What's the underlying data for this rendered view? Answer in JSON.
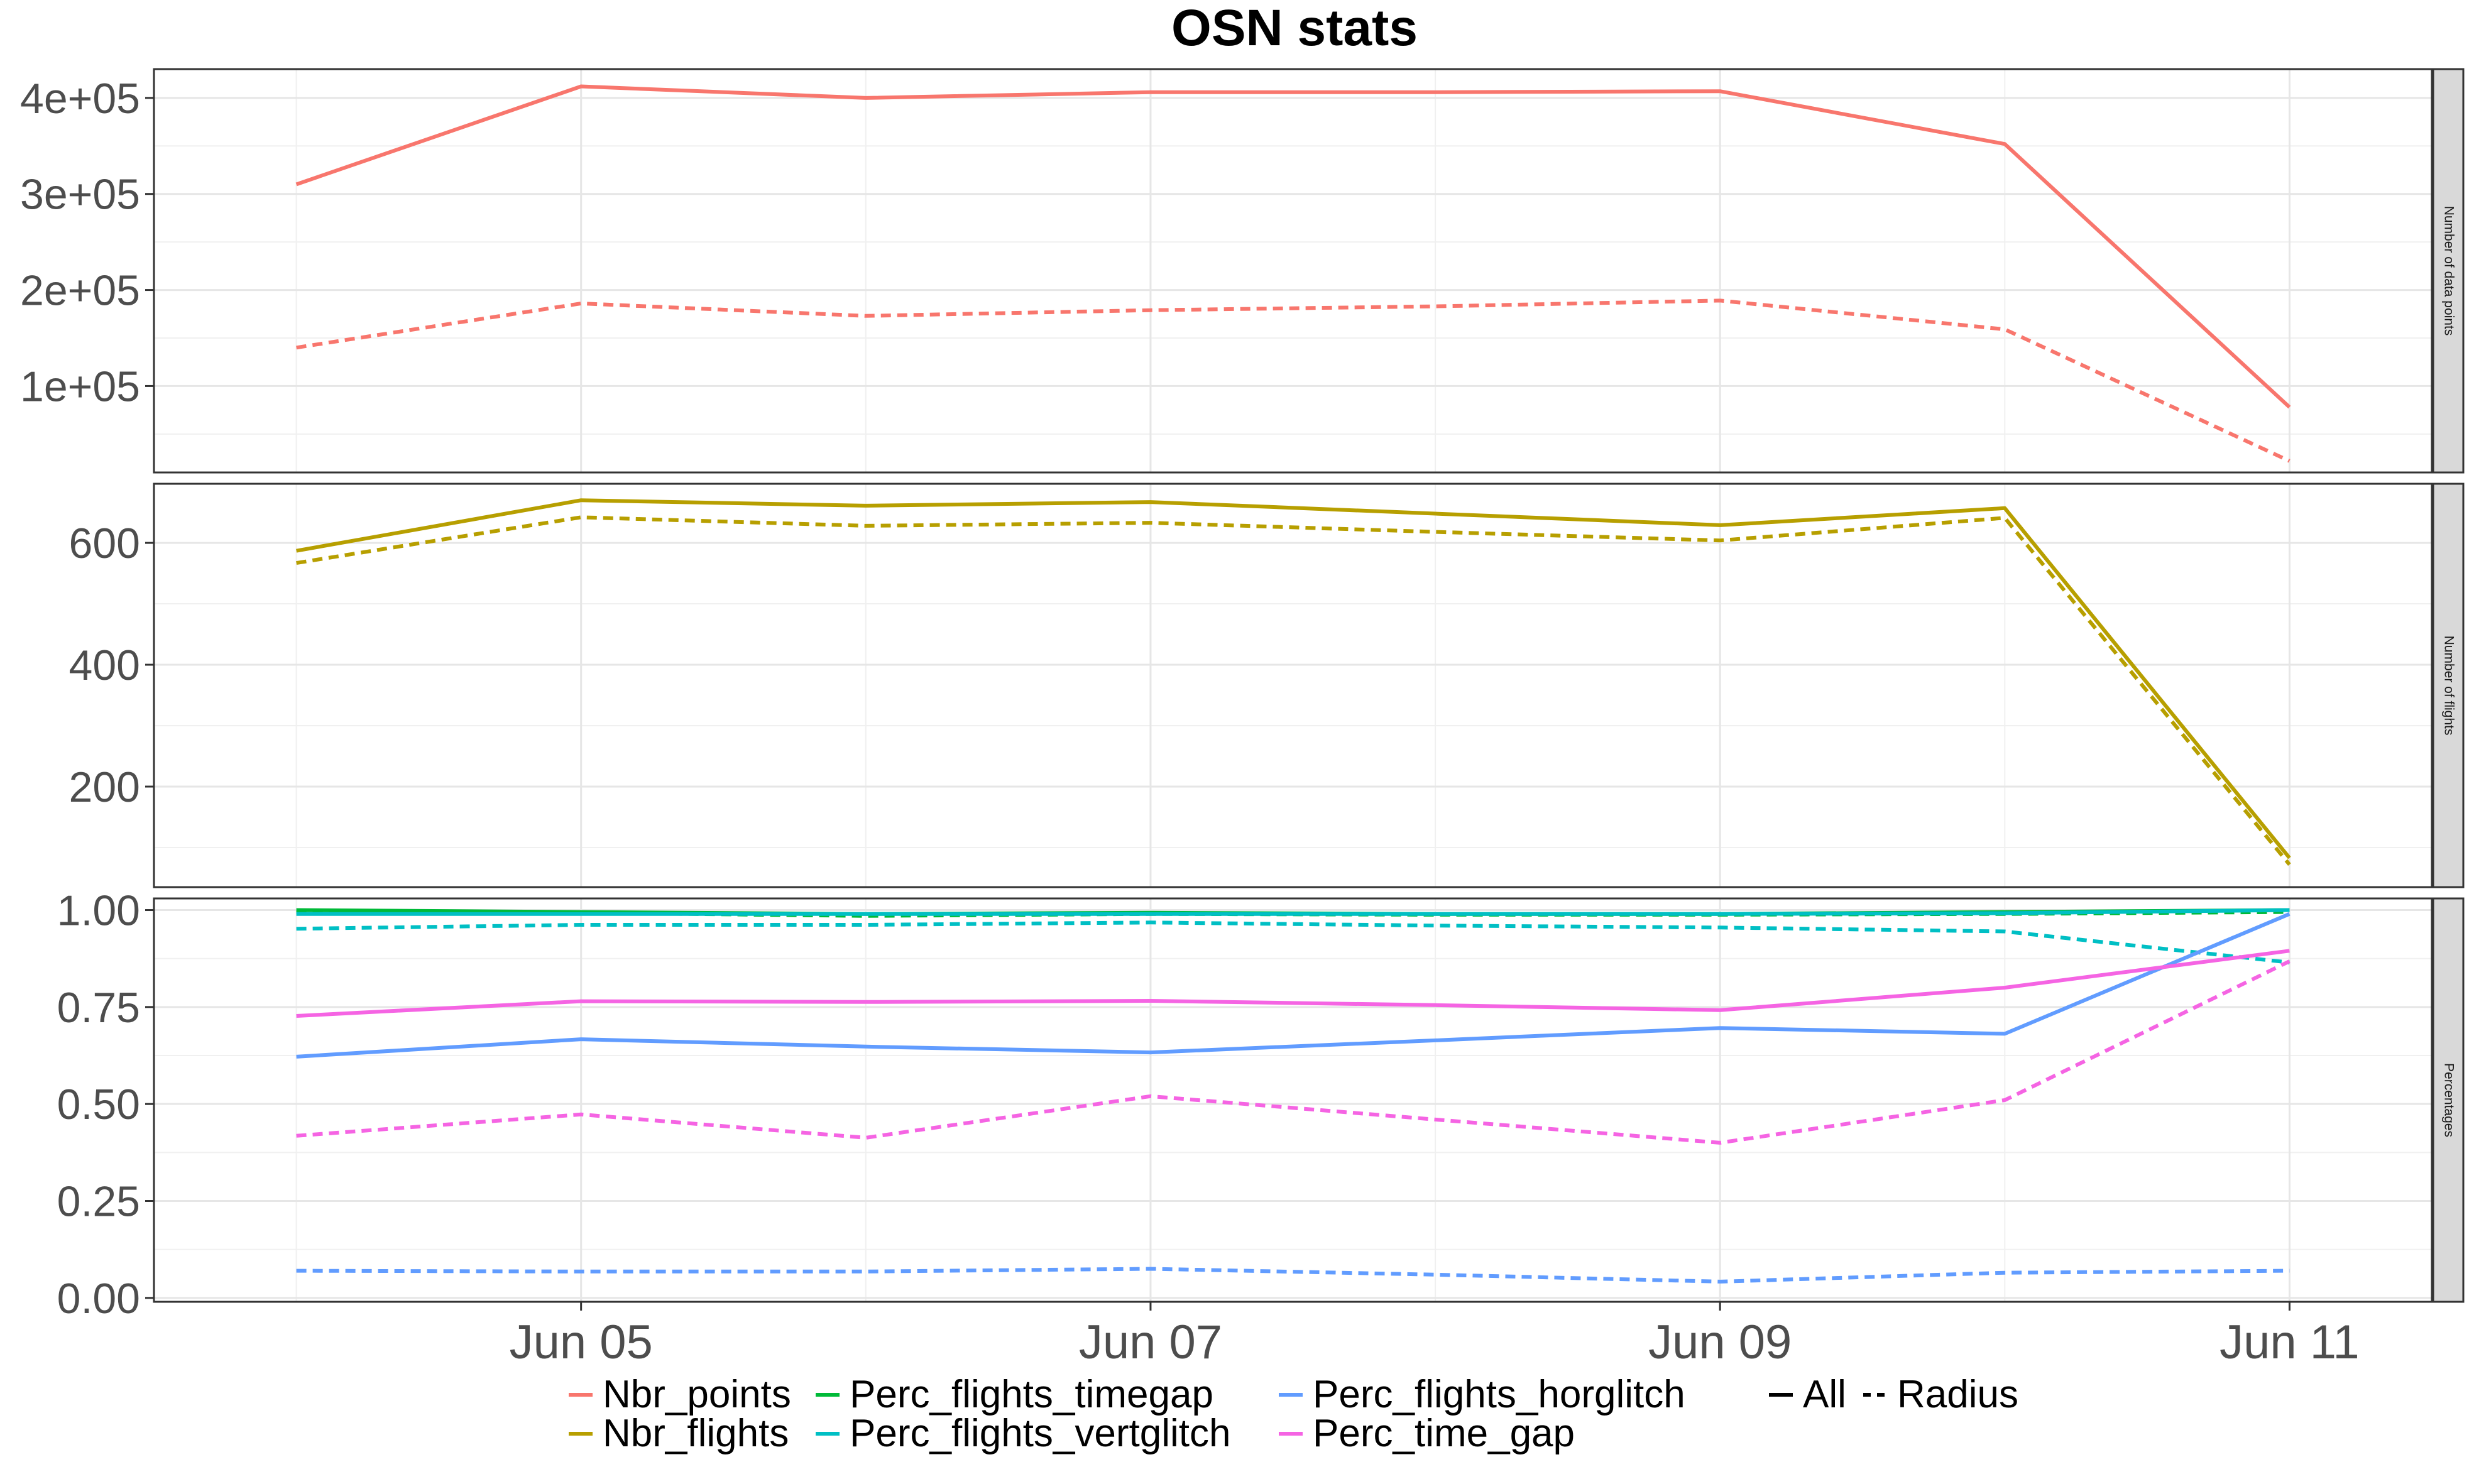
{
  "chart_data": {
    "type": "line",
    "title": "OSN stats",
    "x": [
      "2022-06-04",
      "2022-06-05",
      "2022-06-06",
      "2022-06-07",
      "2022-06-08",
      "2022-06-09",
      "2022-06-10",
      "2022-06-11"
    ],
    "x_tick_labels": [
      "Jun 05",
      "Jun 07",
      "Jun 09",
      "Jun 11"
    ],
    "linetypes": [
      {
        "name": "All",
        "dash": "solid"
      },
      {
        "name": "Radius",
        "dash": "dashed"
      }
    ],
    "grid": true,
    "legend_position": "bottom",
    "series_legend": [
      {
        "name": "Nbr_points",
        "color": "#F8766D"
      },
      {
        "name": "Nbr_flights",
        "color": "#B79F00"
      },
      {
        "name": "Perc_flights_timegap",
        "color": "#00BA38"
      },
      {
        "name": "Perc_flights_vertglitch",
        "color": "#00BFC4"
      },
      {
        "name": "Perc_flights_horglitch",
        "color": "#619CFF"
      },
      {
        "name": "Perc_time_gap",
        "color": "#F564E3"
      }
    ],
    "panels": [
      {
        "strip": "Number of data points",
        "ylim": [
          10000,
          430000
        ],
        "yticks": [
          100000,
          200000,
          300000,
          400000
        ],
        "ytick_labels": [
          "1e+05",
          "2e+05",
          "3e+05",
          "4e+05"
        ],
        "series": [
          {
            "name": "Nbr_points",
            "linetype": "All",
            "color": "#F8766D",
            "values": [
              310000,
              412000,
              400000,
              406000,
              406000,
              407000,
              352000,
              78000
            ]
          },
          {
            "name": "Nbr_points",
            "linetype": "Radius",
            "color": "#F8766D",
            "values": [
              140000,
              186000,
              173000,
              179000,
              183000,
              189000,
              159000,
              22000
            ]
          }
        ]
      },
      {
        "strip": "Number of flights",
        "ylim": [
          35,
          697
        ],
        "yticks": [
          200,
          400,
          600
        ],
        "ytick_labels": [
          "200",
          "400",
          "600"
        ],
        "series": [
          {
            "name": "Nbr_flights",
            "linetype": "All",
            "color": "#B79F00",
            "values": [
              587,
              670,
              661,
              667,
              648,
              629,
              657,
              83
            ]
          },
          {
            "name": "Nbr_flights",
            "linetype": "Radius",
            "color": "#B79F00",
            "values": [
              567,
              642,
              628,
              633,
              618,
              604,
              641,
              72
            ]
          }
        ]
      },
      {
        "strip": "Percentages",
        "ylim": [
          -0.01,
          1.03
        ],
        "yticks": [
          0.0,
          0.25,
          0.5,
          0.75,
          1.0
        ],
        "ytick_labels": [
          "0.00",
          "0.25",
          "0.50",
          "0.75",
          "1.00"
        ],
        "series": [
          {
            "name": "Perc_flights_timegap",
            "linetype": "All",
            "color": "#00BA38",
            "values": [
              1.0,
              0.995,
              0.99,
              0.993,
              0.99,
              0.99,
              0.995,
              1.0
            ]
          },
          {
            "name": "Perc_flights_timegap",
            "linetype": "Radius",
            "color": "#00BA38",
            "values": [
              0.995,
              0.993,
              0.985,
              0.99,
              0.988,
              0.988,
              0.99,
              0.995
            ]
          },
          {
            "name": "Perc_flights_vertglitch",
            "linetype": "All",
            "color": "#00BFC4",
            "values": [
              0.99,
              0.99,
              0.99,
              0.99,
              0.99,
              0.99,
              0.992,
              1.0
            ]
          },
          {
            "name": "Perc_flights_vertglitch",
            "linetype": "Radius",
            "color": "#00BFC4",
            "values": [
              0.952,
              0.962,
              0.962,
              0.968,
              0.96,
              0.955,
              0.945,
              0.865
            ]
          },
          {
            "name": "Perc_flights_horglitch",
            "linetype": "All",
            "color": "#619CFF",
            "values": [
              0.622,
              0.667,
              0.648,
              0.633,
              0.664,
              0.696,
              0.681,
              0.99
            ]
          },
          {
            "name": "Perc_flights_horglitch",
            "linetype": "Radius",
            "color": "#619CFF",
            "values": [
              0.07,
              0.068,
              0.068,
              0.075,
              0.06,
              0.042,
              0.065,
              0.07
            ]
          },
          {
            "name": "Perc_time_gap",
            "linetype": "All",
            "color": "#F564E3",
            "values": [
              0.727,
              0.765,
              0.763,
              0.766,
              0.755,
              0.742,
              0.8,
              0.895
            ]
          },
          {
            "name": "Perc_time_gap",
            "linetype": "Radius",
            "color": "#F564E3",
            "values": [
              0.418,
              0.473,
              0.413,
              0.52,
              0.46,
              0.4,
              0.51,
              0.868
            ]
          }
        ]
      }
    ]
  }
}
